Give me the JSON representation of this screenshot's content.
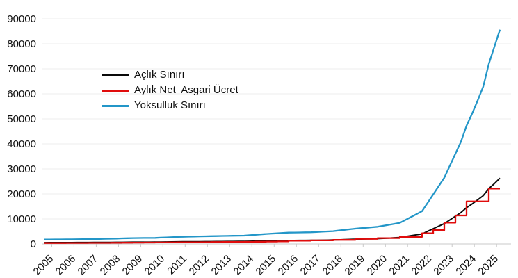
{
  "page": {
    "background": "#ffffff"
  },
  "chart_data": {
    "type": "line",
    "title": "",
    "xlabel": "",
    "ylabel": "",
    "ylim": [
      0,
      90000
    ],
    "xlim_years": [
      2004.9,
      2026.0
    ],
    "grid": "horizontal-light-gray",
    "legend_position": "inside-upper-left",
    "y_tick_labels": [
      "0",
      "10000",
      "20000",
      "30000",
      "40000",
      "50000",
      "60000",
      "70000",
      "80000",
      "90000"
    ],
    "x_tick_labels": [
      "2005",
      "2006",
      "2007",
      "2008",
      "2009",
      "2010",
      "2011",
      "2012",
      "2013",
      "2014",
      "2015",
      "2016",
      "2017",
      "2018",
      "2019",
      "2020",
      "2021",
      "2022",
      "2023",
      "2024",
      "2025"
    ],
    "colors": {
      "grid": "#ececec",
      "axis": "#c9c9c9",
      "tick_label": "#0d0d0d"
    },
    "x": [
      2005,
      2005.25,
      2005.5,
      2005.75,
      2006,
      2006.25,
      2006.5,
      2006.75,
      2007,
      2007.25,
      2007.5,
      2007.75,
      2008,
      2008.25,
      2008.5,
      2008.75,
      2009,
      2009.25,
      2009.5,
      2009.75,
      2010,
      2010.25,
      2010.5,
      2010.75,
      2011,
      2011.25,
      2011.5,
      2011.75,
      2012,
      2012.25,
      2012.5,
      2012.75,
      2013,
      2013.25,
      2013.5,
      2013.75,
      2014,
      2014.25,
      2014.5,
      2014.75,
      2015,
      2015.25,
      2015.5,
      2015.75,
      2016,
      2016.25,
      2016.5,
      2016.75,
      2017,
      2017.25,
      2017.5,
      2017.75,
      2018,
      2018.25,
      2018.5,
      2018.75,
      2019,
      2019.25,
      2019.5,
      2019.75,
      2020,
      2020.25,
      2020.5,
      2020.75,
      2021,
      2021.25,
      2021.5,
      2021.75,
      2022,
      2022.25,
      2022.5,
      2022.75,
      2023,
      2023.25,
      2023.5,
      2023.75,
      2024,
      2024.25,
      2024.5,
      2024.75,
      2025,
      2025.25,
      2025.5
    ],
    "series": [
      {
        "name": "Açlık Sınırı",
        "color": "#0a0a0a",
        "step": false,
        "values": [
          538,
          544,
          550,
          556,
          562,
          567,
          572,
          578,
          583,
          598,
          612,
          627,
          641,
          660,
          679,
          698,
          717,
          723,
          730,
          736,
          742,
          772,
          801,
          831,
          860,
          877,
          894,
          910,
          927,
          940,
          953,
          966,
          979,
          991,
          1002,
          1014,
          1025,
          1077,
          1129,
          1180,
          1232,
          1271,
          1309,
          1348,
          1386,
          1398,
          1410,
          1422,
          1434,
          1468,
          1502,
          1536,
          1570,
          1647,
          1723,
          1800,
          1876,
          1933,
          1990,
          2046,
          2103,
          2225,
          2347,
          2468,
          2590,
          2946,
          3302,
          3657,
          4013,
          5042,
          6072,
          7101,
          8130,
          9600,
          11080,
          12550,
          14500,
          16000,
          17600,
          19300,
          22105,
          24110,
          26292
        ]
      },
      {
        "name": "Aylık Net  Asgari Ücret",
        "color": "#e00c0c",
        "step": true,
        "values": [
          350,
          350,
          350,
          350,
          380,
          380,
          380,
          380,
          403,
          403,
          419,
          419,
          482,
          482,
          503,
          503,
          527,
          527,
          546,
          546,
          577,
          577,
          599,
          599,
          630,
          630,
          659,
          659,
          701,
          701,
          740,
          740,
          773,
          773,
          805,
          805,
          846,
          846,
          891,
          891,
          949,
          949,
          1001,
          1001,
          1301,
          1301,
          1301,
          1301,
          1404,
          1404,
          1404,
          1404,
          1603,
          1603,
          1603,
          1603,
          2021,
          2021,
          2021,
          2021,
          2325,
          2325,
          2325,
          2325,
          2826,
          2826,
          2826,
          2826,
          4253,
          4253,
          5500,
          5500,
          8507,
          8507,
          11402,
          11402,
          17002,
          17002,
          17002,
          17002,
          22104,
          22104,
          22104
        ]
      },
      {
        "name": "Yoksulluk Sınırı",
        "color": "#2396c8",
        "step": false,
        "values": [
          1752,
          1772,
          1792,
          1811,
          1830,
          1847,
          1863,
          1882,
          1899,
          1948,
          1993,
          2042,
          2088,
          2150,
          2212,
          2273,
          2335,
          2355,
          2378,
          2397,
          2417,
          2514,
          2609,
          2706,
          2801,
          2856,
          2912,
          2964,
          3019,
          3062,
          3104,
          3146,
          3189,
          3228,
          3264,
          3303,
          3339,
          3508,
          3677,
          3843,
          4013,
          4140,
          4263,
          4390,
          4515,
          4554,
          4593,
          4632,
          4671,
          4781,
          4892,
          5003,
          5114,
          5364,
          5612,
          5863,
          6110,
          6296,
          6482,
          6665,
          6850,
          7247,
          7645,
          8038,
          8436,
          9596,
          10755,
          11912,
          13072,
          16424,
          19778,
          23129,
          26485,
          31285,
          36086,
          40885,
          47250,
          52100,
          57320,
          62900,
          71951,
          78800,
          85637
        ]
      }
    ]
  }
}
